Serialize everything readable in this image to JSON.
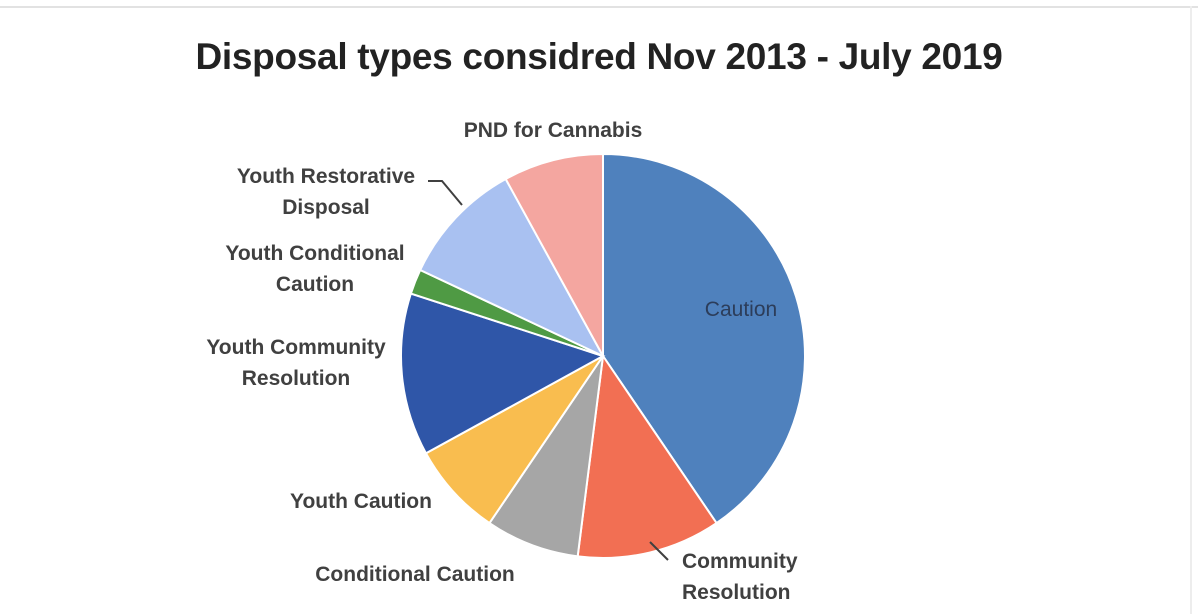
{
  "chart_data": {
    "type": "pie",
    "title": "Disposal types considred Nov 2013 - July 2019",
    "start": "top, clockwise",
    "slices": [
      {
        "label_lines": [
          "Caution"
        ],
        "value": 40.5,
        "color": "#4f81bd"
      },
      {
        "label_lines": [
          "Community",
          "Resolution"
        ],
        "value": 11.5,
        "color": "#f26f53"
      },
      {
        "label_lines": [
          "Conditional Caution"
        ],
        "value": 7.5,
        "color": "#a6a6a6"
      },
      {
        "label_lines": [
          "Youth Caution"
        ],
        "value": 7.5,
        "color": "#f9bd4f"
      },
      {
        "label_lines": [
          "Youth Community",
          "Resolution"
        ],
        "value": 13.0,
        "color": "#2f56a8"
      },
      {
        "label_lines": [
          "Youth Conditional",
          "Caution"
        ],
        "value": 2.0,
        "color": "#4f9a44"
      },
      {
        "label_lines": [
          "Youth Restorative",
          "Disposal"
        ],
        "value": 10.0,
        "color": "#a9c1f1"
      },
      {
        "label_lines": [
          "PND for Cannabis"
        ],
        "value": 8.0,
        "color": "#f4a6a0"
      }
    ]
  }
}
